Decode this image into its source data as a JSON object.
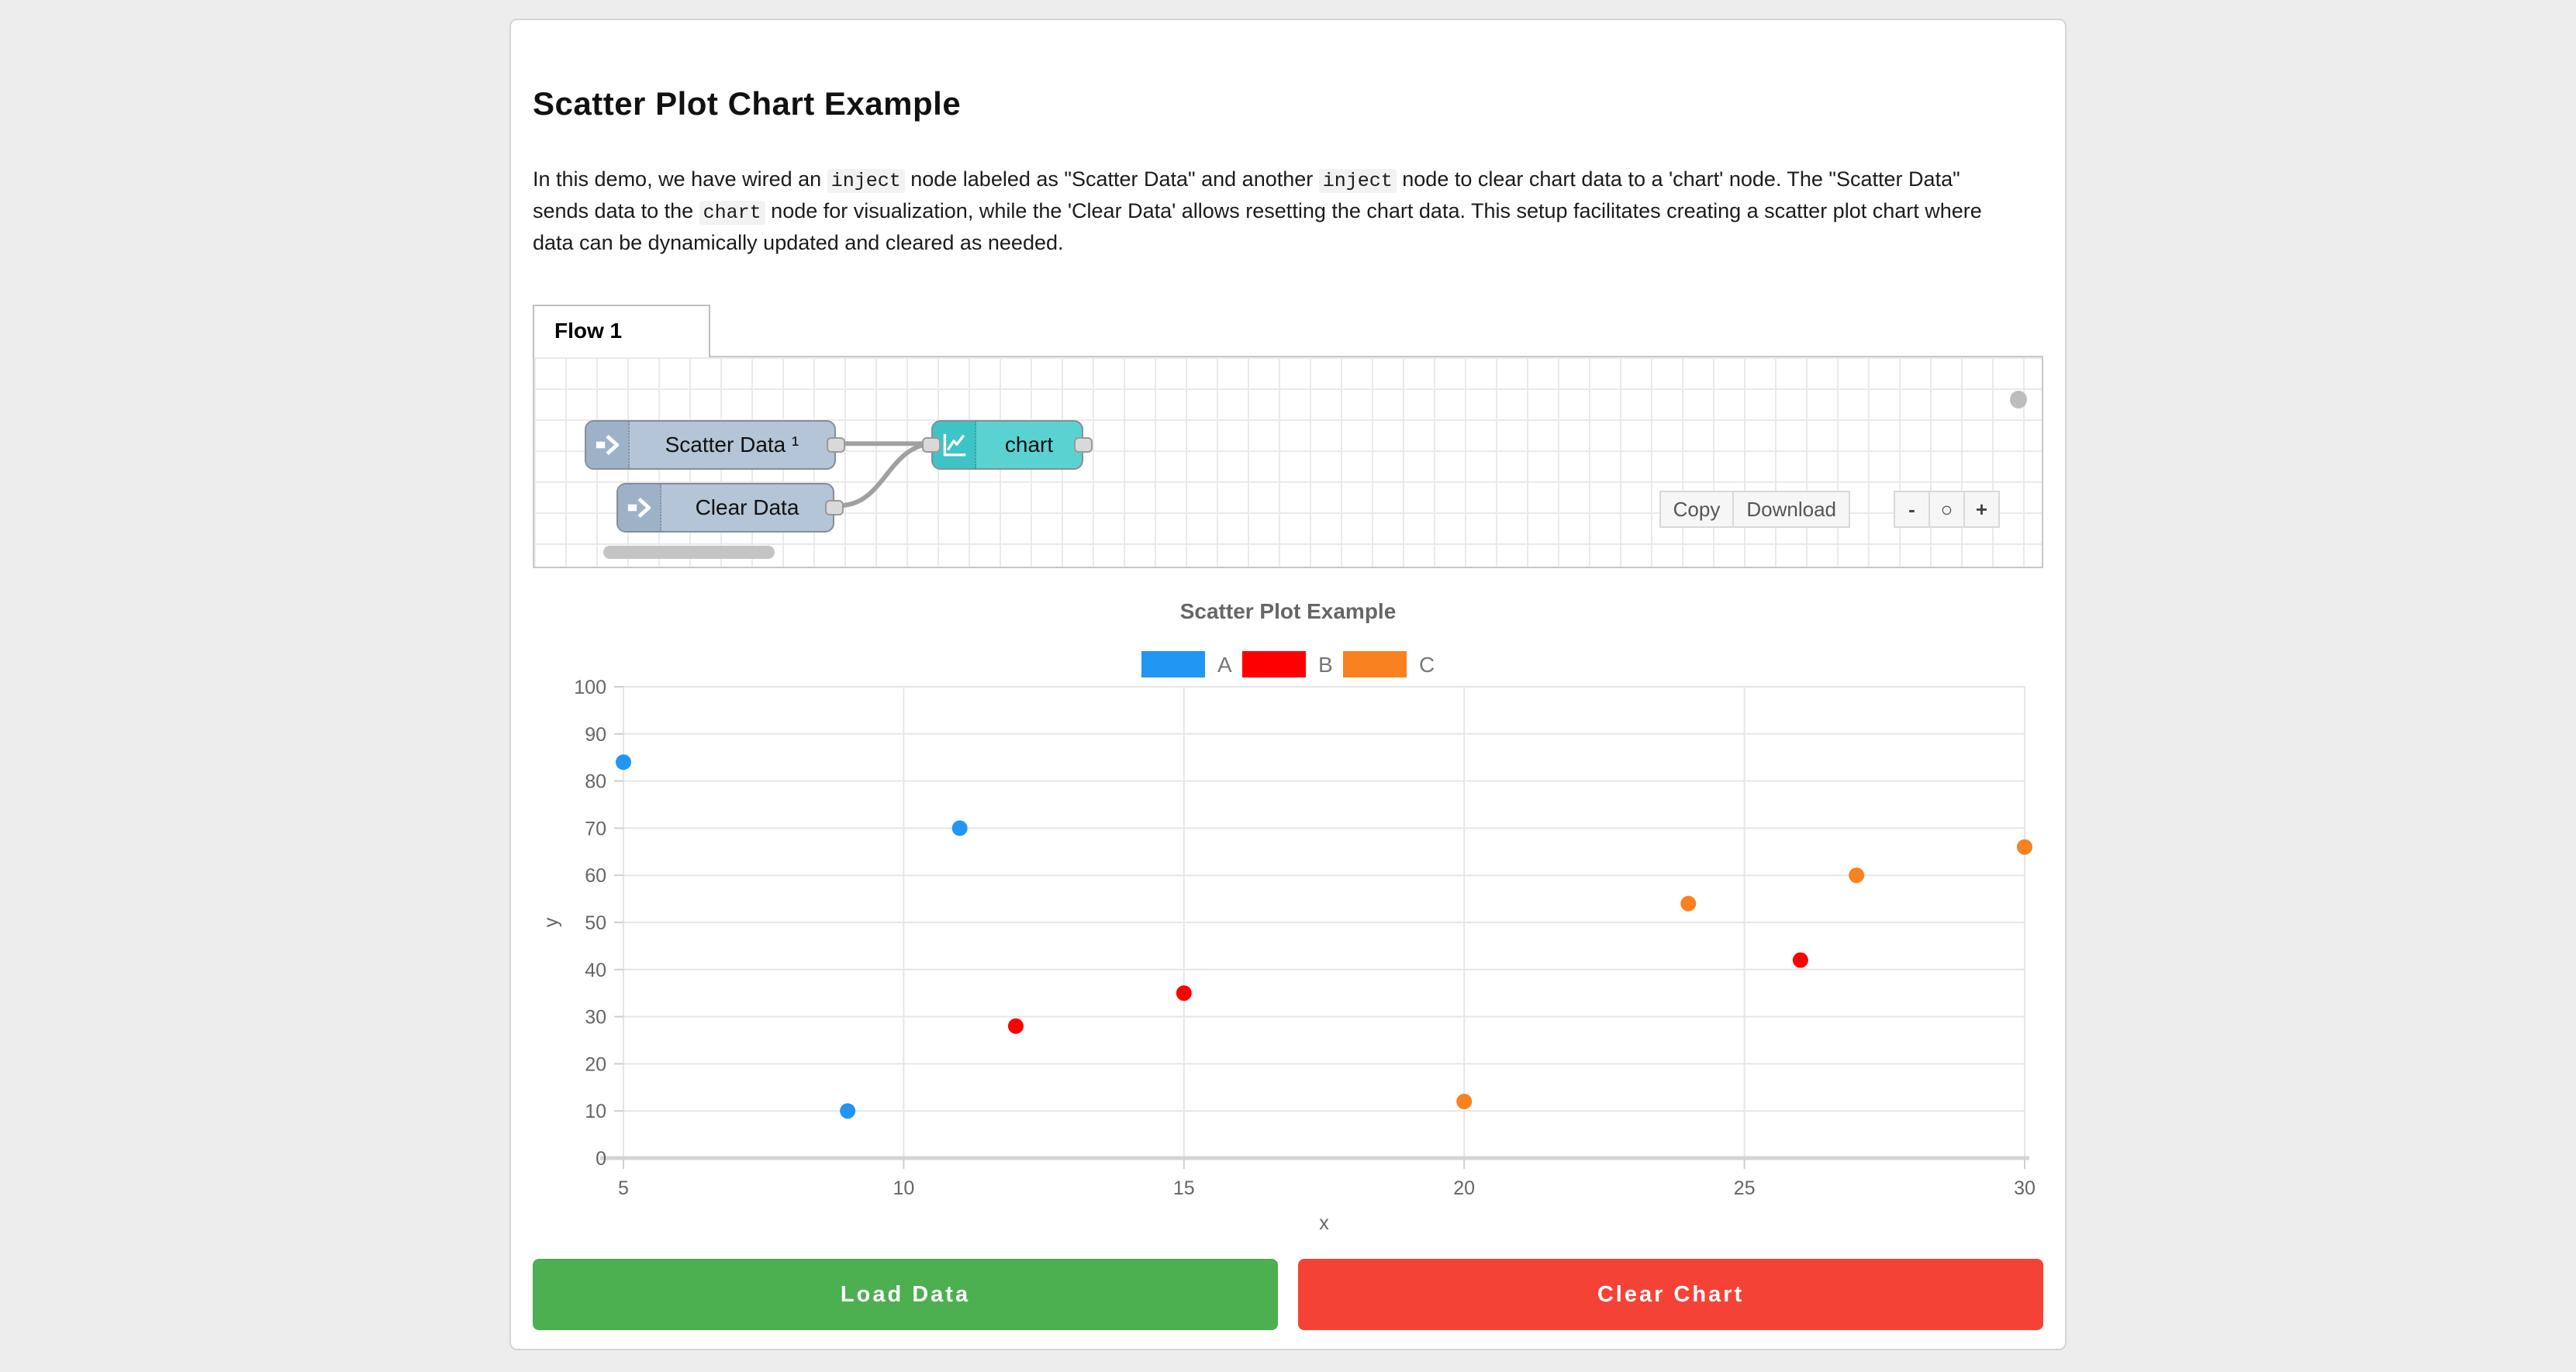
{
  "page": {
    "title": "Scatter Plot Chart Example"
  },
  "intro": {
    "segments": [
      {
        "text": "In this demo, we have wired an "
      },
      {
        "text": "inject",
        "code": true
      },
      {
        "text": " node labeled as \"Scatter Data\" and another "
      },
      {
        "text": "inject",
        "code": true
      },
      {
        "text": " node to clear chart data to a 'chart' node. The \"Scatter Data\" sends data to the "
      },
      {
        "text": "chart",
        "code": true
      },
      {
        "text": " node for visualization, while the 'Clear Data' allows resetting the chart data. This setup facilitates creating a scatter plot chart where data can be dynamically updated and cleared as needed."
      }
    ]
  },
  "flow": {
    "tab_label": "Flow 1",
    "nodes": [
      {
        "id": "inject-scatter",
        "type": "inject",
        "label": "Scatter Data ¹"
      },
      {
        "id": "inject-clear",
        "type": "inject",
        "label": "Clear Data"
      },
      {
        "id": "chart",
        "type": "chart",
        "label": "chart"
      }
    ],
    "toolbar": {
      "copy_label": "Copy",
      "download_label": "Download",
      "zoom_out_label": "-",
      "zoom_reset_label": "○",
      "zoom_in_label": "+"
    },
    "colors": {
      "inject_body": "#b3c5d6",
      "inject_icon_bg": "#9eb2c7",
      "chart_body": "#5bd2d2",
      "chart_icon_bg": "#3ec4c6",
      "wire": "#a0a0a0"
    }
  },
  "chart_data": {
    "type": "scatter",
    "title": "Scatter Plot Example",
    "xlabel": "x",
    "ylabel": "y",
    "xlim": [
      5,
      30
    ],
    "ylim": [
      0,
      100
    ],
    "xticks": [
      5,
      10,
      15,
      20,
      25,
      30
    ],
    "yticks": [
      0,
      10,
      20,
      30,
      40,
      50,
      60,
      70,
      80,
      90,
      100
    ],
    "grid": true,
    "legend_position": "top",
    "series": [
      {
        "name": "A",
        "color": "#2196f3",
        "points": [
          [
            5,
            84
          ],
          [
            9,
            10
          ],
          [
            11,
            70
          ]
        ]
      },
      {
        "name": "B",
        "color": "#ff0000",
        "points": [
          [
            12,
            28
          ],
          [
            15,
            35
          ],
          [
            26,
            42
          ]
        ]
      },
      {
        "name": "C",
        "color": "#f8821f",
        "points": [
          [
            20,
            12
          ],
          [
            24,
            54
          ],
          [
            27,
            60
          ],
          [
            30,
            66
          ]
        ]
      }
    ]
  },
  "actions": {
    "load_label": "Load Data",
    "load_color": "#4caf50",
    "clear_label": "Clear Chart",
    "clear_color": "#f44336"
  }
}
